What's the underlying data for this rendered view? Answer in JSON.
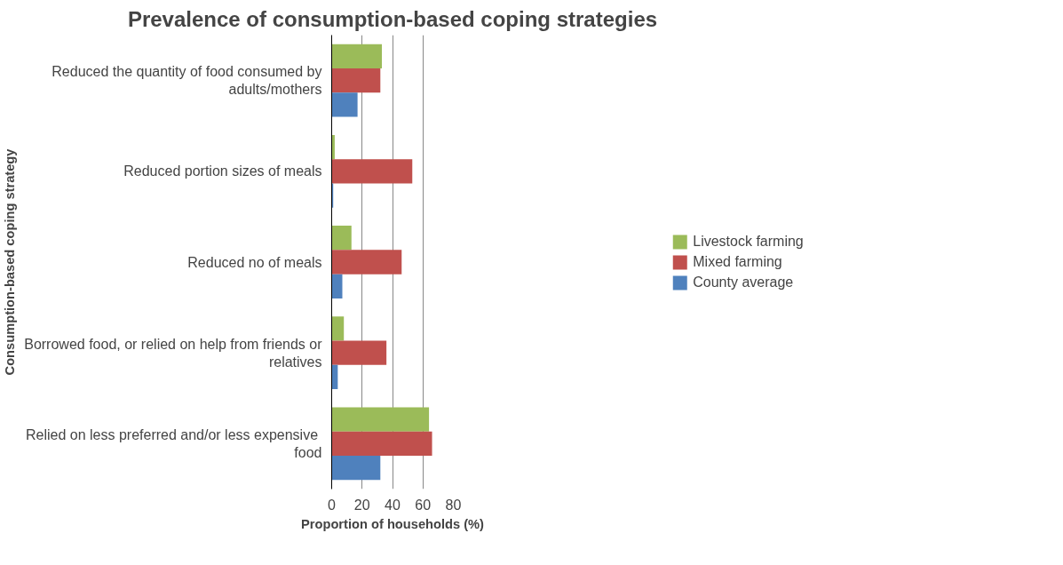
{
  "chart_data": {
    "type": "bar",
    "orientation": "horizontal",
    "title": "Prevalence of consumption-based coping strategies",
    "xlabel": "Proportion of households (%)",
    "ylabel": "Consumption-based coping strategy",
    "categories": [
      "Reduced the quantity of food consumed by adults/mothers",
      "Reduced portion sizes of meals",
      "Reduced no of meals",
      "Borrowed food, or relied on help from friends or relatives",
      "Relied on less preferred  and/or less expensive food"
    ],
    "series": [
      {
        "name": "Livestock farming",
        "color": "#9bbb59",
        "values": [
          33,
          2,
          13,
          8,
          64
        ]
      },
      {
        "name": "Mixed farming",
        "color": "#c0504d",
        "values": [
          32,
          53,
          46,
          36,
          66
        ]
      },
      {
        "name": "County average",
        "color": "#4f81bd",
        "values": [
          17,
          1,
          7,
          4,
          32
        ]
      }
    ],
    "xlim": [
      0,
      80
    ],
    "xticks": [
      0,
      20,
      40,
      60,
      80
    ],
    "grid": "x",
    "legend": "right"
  }
}
